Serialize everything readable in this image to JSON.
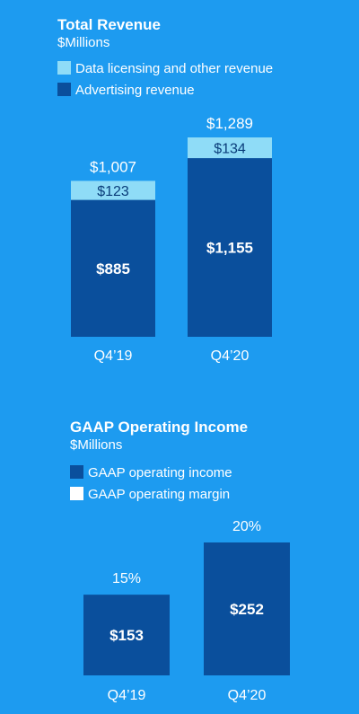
{
  "colors": {
    "background": "#1d9bf0",
    "advertising": "#0a4f9c",
    "licensing": "#8fdcf7",
    "operating_income": "#0a4f9c",
    "operating_margin": "#ffffff",
    "text_dark": "#0a3d7a",
    "text_light": "#ffffff"
  },
  "chart_data": [
    {
      "type": "bar",
      "stacked": true,
      "title": "Total Revenue",
      "subtitle": "$Millions",
      "categories": [
        "Q4’19",
        "Q4’20"
      ],
      "series": [
        {
          "name": "Advertising revenue",
          "values": [
            885,
            1155
          ],
          "labels": [
            "$885",
            "$1,155"
          ]
        },
        {
          "name": "Data licensing and other revenue",
          "values": [
            123,
            134
          ],
          "labels": [
            "$123",
            "$134"
          ]
        }
      ],
      "totals": [
        1007,
        1289
      ],
      "total_labels": [
        "$1,007",
        "$1,289"
      ],
      "legend": [
        "Data licensing and other revenue",
        "Advertising revenue"
      ],
      "legend_position": "top-left",
      "grid": false
    },
    {
      "type": "bar",
      "title": "GAAP Operating Income",
      "subtitle": "$Millions",
      "categories": [
        "Q4’19",
        "Q4’20"
      ],
      "series": [
        {
          "name": "GAAP operating income",
          "values": [
            153,
            252
          ],
          "labels": [
            "$153",
            "$252"
          ]
        }
      ],
      "margins": [
        15,
        20
      ],
      "margin_labels": [
        "15%",
        "20%"
      ],
      "legend": [
        "GAAP operating income",
        "GAAP operating margin"
      ],
      "legend_position": "top-left",
      "grid": false
    }
  ]
}
